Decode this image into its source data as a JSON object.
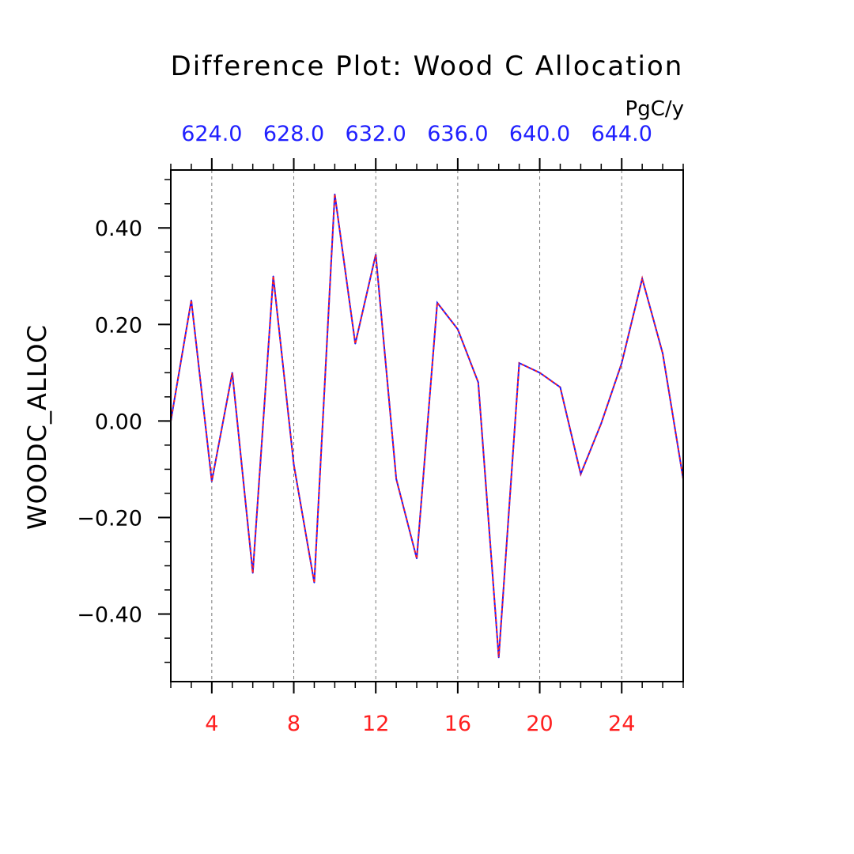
{
  "chart_data": {
    "type": "line",
    "title": "Difference Plot: Wood C Allocation",
    "units": "PgC/y",
    "ylabel": "WOODC_ALLOC",
    "xlabel": "",
    "xlim": [
      2,
      27
    ],
    "ylim": [
      -0.54,
      0.52
    ],
    "x_ticks": [
      "4",
      "8",
      "12",
      "16",
      "20",
      "24"
    ],
    "top_x_ticks": [
      "624.0",
      "628.0",
      "632.0",
      "636.0",
      "640.0",
      "644.0"
    ],
    "y_ticks": [
      "0.40",
      "0.20",
      "0.00",
      "−0.20",
      "−0.40"
    ],
    "grid": "vertical dashed",
    "colors": {
      "line_a": "#1a1aff",
      "line_b": "#ff2020",
      "bottom_ticks": "#ff2020",
      "top_ticks": "#2020ff",
      "grid": "#777777"
    },
    "x": [
      2,
      3,
      4,
      5,
      6,
      7,
      8,
      9,
      10,
      11,
      12,
      13,
      14,
      15,
      16,
      17,
      18,
      19,
      20,
      21,
      22,
      23,
      24,
      25,
      26,
      27
    ],
    "series": [
      {
        "values": [
          0.0,
          0.25,
          -0.125,
          0.1,
          -0.315,
          0.3,
          -0.09,
          -0.335,
          0.47,
          0.16,
          0.345,
          -0.12,
          -0.285,
          0.245,
          0.19,
          0.08,
          -0.49,
          0.12,
          0.1,
          0.07,
          -0.11,
          -0.005,
          0.12,
          0.295,
          0.14,
          -0.12
        ]
      }
    ]
  }
}
